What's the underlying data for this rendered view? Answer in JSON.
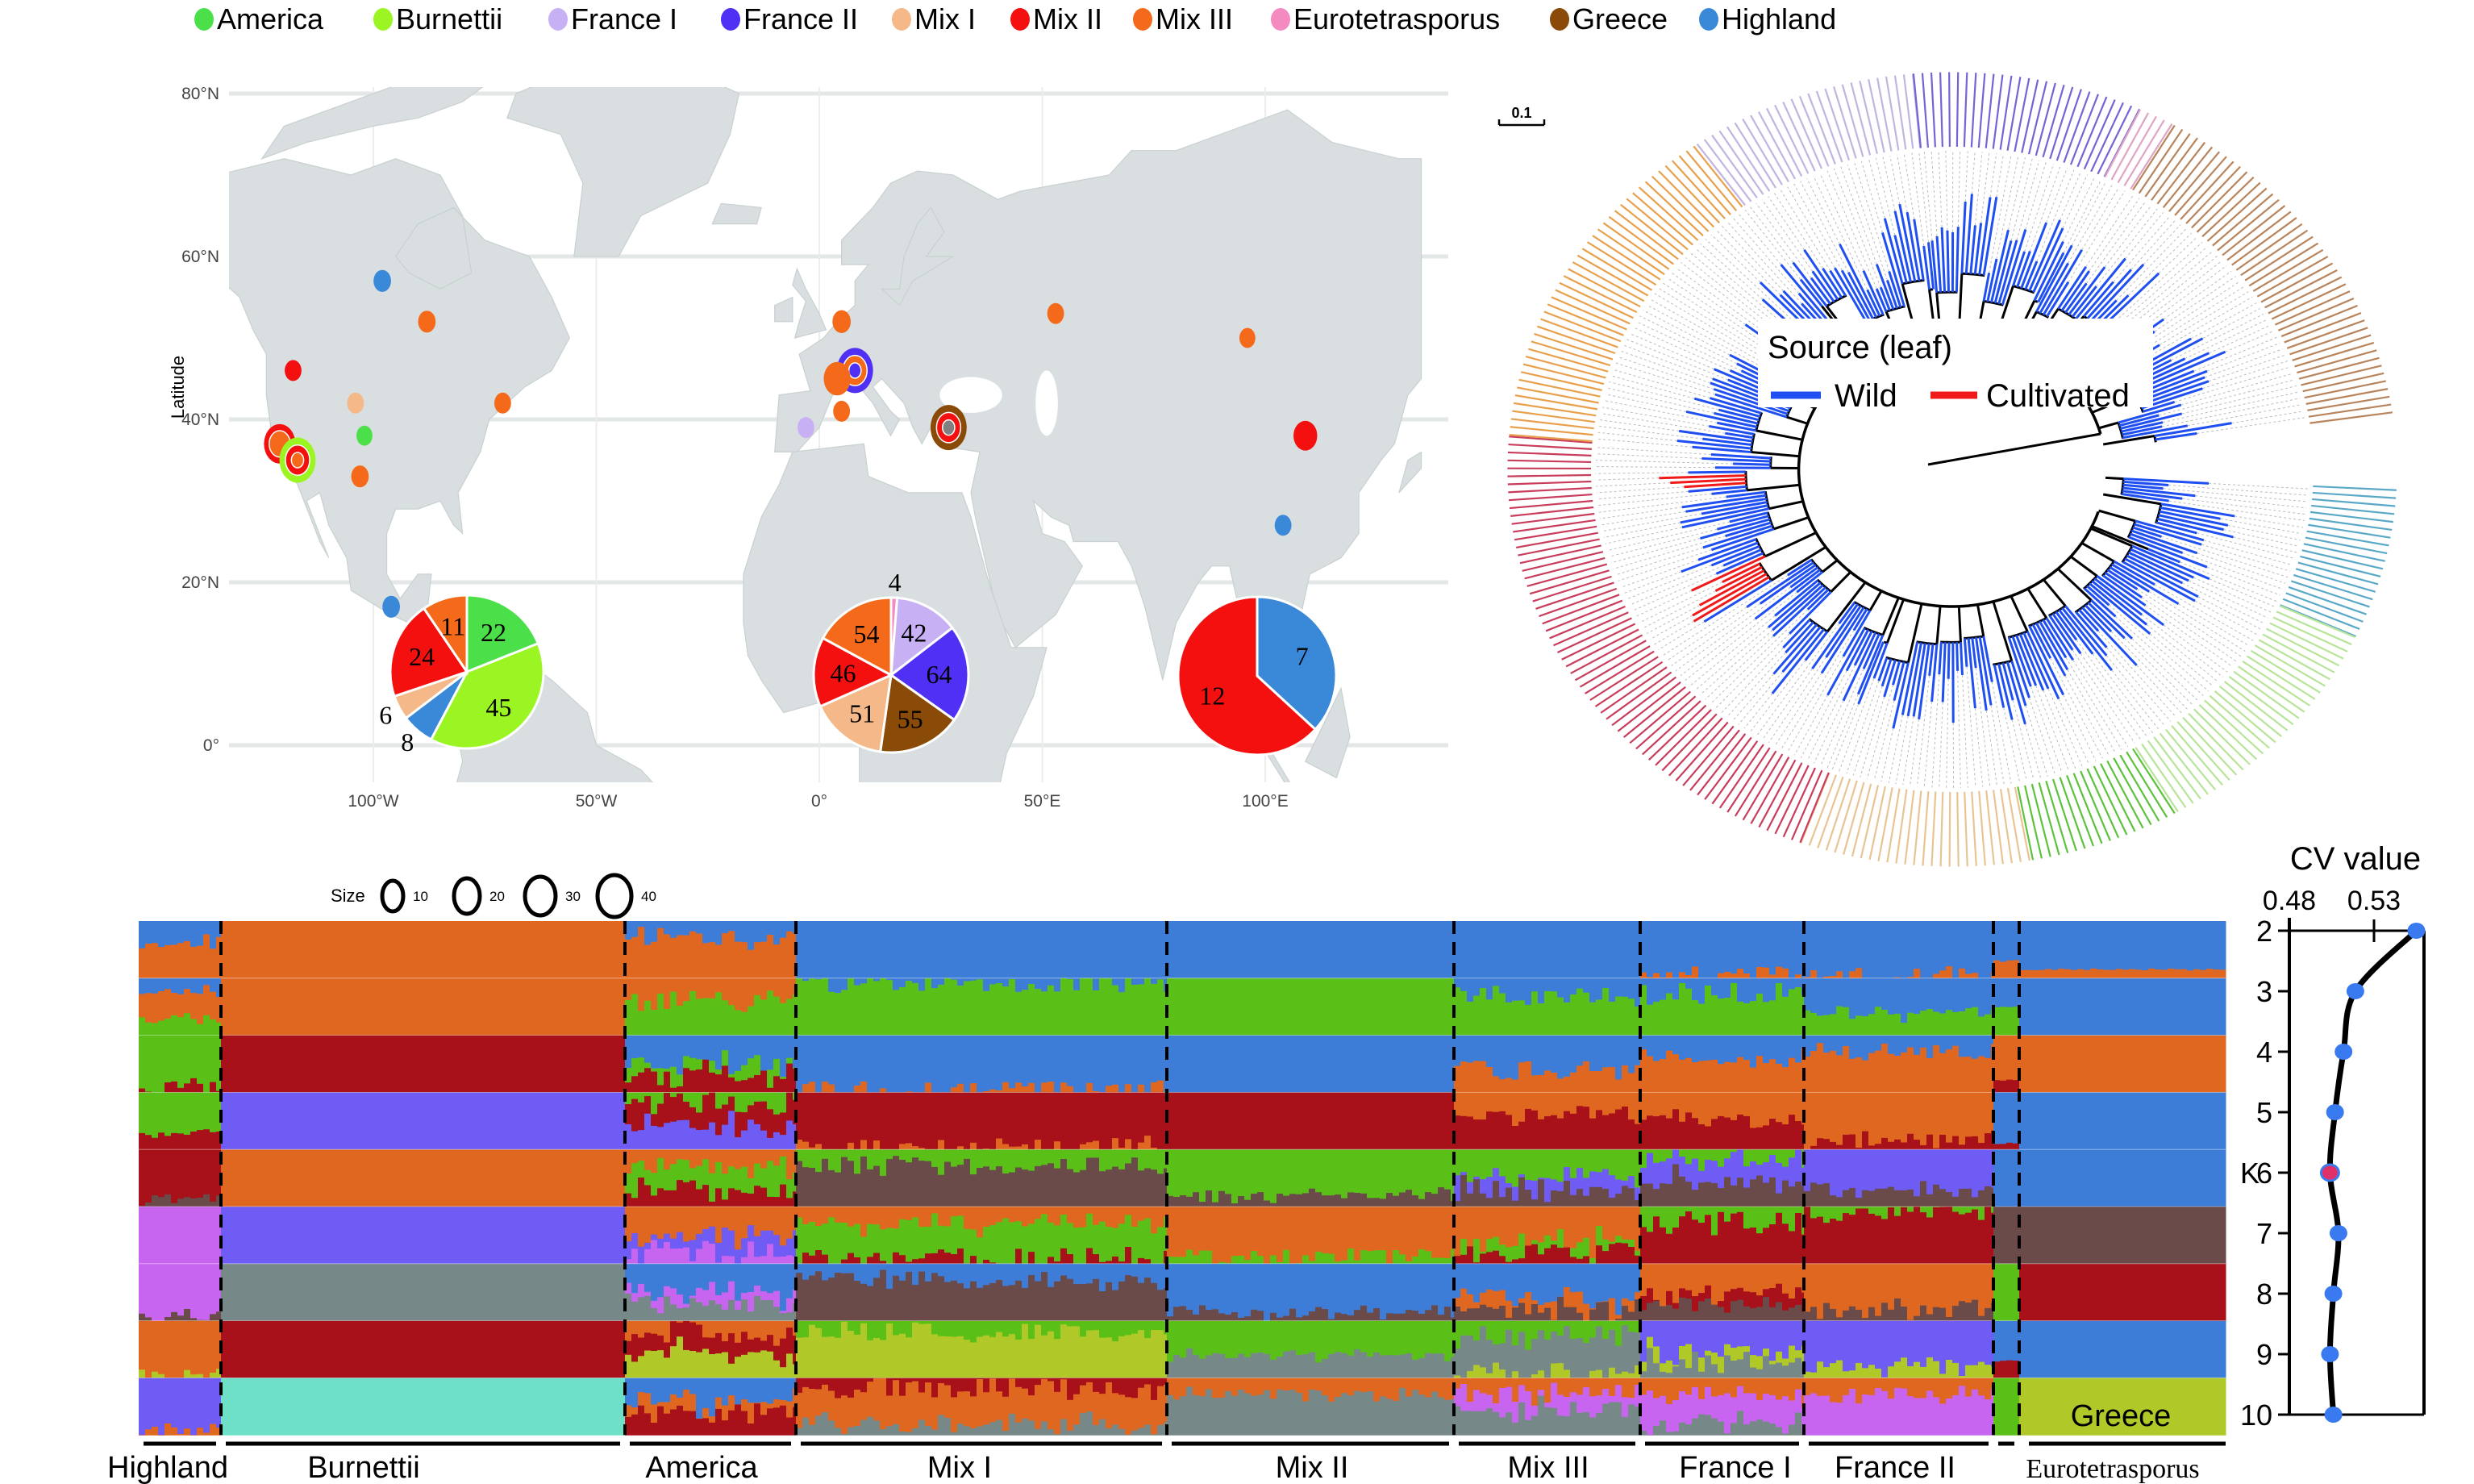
{
  "legend": [
    {
      "label": "America",
      "color": "#4be04a"
    },
    {
      "label": "Burnettii",
      "color": "#9af522"
    },
    {
      "label": "France I",
      "color": "#c8b0f5"
    },
    {
      "label": "France II",
      "color": "#5030f5"
    },
    {
      "label": "Mix I",
      "color": "#f5b888"
    },
    {
      "label": "Mix II",
      "color": "#f51010"
    },
    {
      "label": "Mix III",
      "color": "#f56a1a"
    },
    {
      "label": "Eurotetrasporus",
      "color": "#f58ac0"
    },
    {
      "label": "Greece",
      "color": "#8a4a08"
    },
    {
      "label": "Highland",
      "color": "#3a88d8"
    }
  ],
  "map": {
    "ylabel": "Latitude",
    "lat_ticks": [
      {
        "label": "80°N",
        "value": 80
      },
      {
        "label": "60°N",
        "value": 60
      },
      {
        "label": "40°N",
        "value": 40
      },
      {
        "label": "20°N",
        "value": 20
      },
      {
        "label": "0°",
        "value": 0
      }
    ],
    "lon_ticks": [
      {
        "label": "100°W",
        "value": -100
      },
      {
        "label": "50°W",
        "value": -50
      },
      {
        "label": "0°",
        "value": 0
      },
      {
        "label": "50°E",
        "value": 50
      },
      {
        "label": "100°E",
        "value": 100
      }
    ],
    "size_legend": {
      "title": "Size",
      "values": [
        "10",
        "20",
        "30",
        "40"
      ]
    },
    "land_color": "#d9dfe0",
    "points": [
      {
        "lon": -98,
        "lat": 57,
        "groups": [
          "Highland"
        ],
        "size": 6
      },
      {
        "lon": -88,
        "lat": 52,
        "groups": [
          "Mix III"
        ],
        "size": 6
      },
      {
        "lon": -118,
        "lat": 46,
        "groups": [
          "Mix II"
        ],
        "size": 5
      },
      {
        "lon": -104,
        "lat": 42,
        "groups": [
          "Mix I"
        ],
        "size": 5
      },
      {
        "lon": -102,
        "lat": 38,
        "groups": [
          "America"
        ],
        "size": 4
      },
      {
        "lon": -121,
        "lat": 37,
        "groups": [
          "Mix II",
          "Mix III"
        ],
        "size": 24
      },
      {
        "lon": -117,
        "lat": 35,
        "groups": [
          "Burnettii",
          "Mix II",
          "Mix III"
        ],
        "size": 30
      },
      {
        "lon": -103,
        "lat": 33,
        "groups": [
          "Mix III"
        ],
        "size": 6
      },
      {
        "lon": -71,
        "lat": 42,
        "groups": [
          "Mix III"
        ],
        "size": 5
      },
      {
        "lon": -96,
        "lat": 17,
        "groups": [
          "Highland"
        ],
        "size": 6
      },
      {
        "lon": 5,
        "lat": 52,
        "groups": [
          "Mix III"
        ],
        "size": 7
      },
      {
        "lon": 8,
        "lat": 46,
        "groups": [
          "France II",
          "Mix III",
          "France II"
        ],
        "size": 30
      },
      {
        "lon": 4,
        "lat": 45,
        "groups": [
          "Mix III"
        ],
        "size": 18
      },
      {
        "lon": 5,
        "lat": 41,
        "groups": [
          "Mix III"
        ],
        "size": 5
      },
      {
        "lon": -3,
        "lat": 39,
        "groups": [
          "France I"
        ],
        "size": 5
      },
      {
        "lon": 29,
        "lat": 39,
        "groups": [
          "Greece",
          "Mix II",
          "#808080"
        ],
        "size": 30
      },
      {
        "lon": 53,
        "lat": 53,
        "groups": [
          "Mix III"
        ],
        "size": 5
      },
      {
        "lon": 96,
        "lat": 50,
        "groups": [
          "Mix III"
        ],
        "size": 4
      },
      {
        "lon": 109,
        "lat": 38,
        "groups": [
          "Mix II"
        ],
        "size": 14
      },
      {
        "lon": 104,
        "lat": 27,
        "groups": [
          "Highland"
        ],
        "size": 5
      }
    ]
  },
  "tree": {
    "scale_label": "0.1",
    "legend_title": "Source (leaf)",
    "legend": [
      {
        "label": "Wild",
        "color": "#1f4ff0"
      },
      {
        "label": "Cultivated",
        "color": "#f01a1a"
      }
    ],
    "clades": [
      {
        "group": "Highland",
        "color": "#5aa8c8"
      },
      {
        "group": "Burnettii",
        "color": "#b8e49a"
      },
      {
        "group": "America",
        "color": "#5cc23c"
      },
      {
        "group": "Mix I",
        "color": "#e8c495"
      },
      {
        "group": "Mix II",
        "color": "#c83c5c"
      },
      {
        "group": "Mix III",
        "color": "#e8a04c"
      },
      {
        "group": "France I",
        "color": "#c2b4e0"
      },
      {
        "group": "France II",
        "color": "#7464d4"
      },
      {
        "group": "Eurotetrasporus",
        "color": "#e0a4c4"
      },
      {
        "group": "Greece",
        "color": "#b8845c"
      }
    ]
  },
  "structure": {
    "k_label": "K",
    "cluster_colors": {
      "B": "#3d7dd8",
      "O": "#e0671f",
      "G": "#5ac018",
      "R": "#a8101a",
      "P": "#6e5cf5",
      "M": "#6b4a4a",
      "V": "#c865f0",
      "Y": "#b0c828",
      "T": "#6ee0c8",
      "S": "#778888"
    },
    "groups": [
      {
        "label": "Highland",
        "inline": false,
        "comp": [
          "B.35 O.65",
          "B.25 O.45 G.3",
          "G.9 R.1",
          "G.75 R.25",
          "R.85 M.15",
          "V1",
          "V.9 M.1",
          "O.95 Y.05",
          "P.9 O.1"
        ]
      },
      {
        "label": "Burnettii",
        "inline": false,
        "comp": [
          "O1",
          "O1",
          "R1",
          "P1",
          "O1",
          "P1",
          "S1",
          "R1",
          "T1"
        ]
      },
      {
        "label": "America",
        "inline": false,
        "comp": [
          "B.3 O.7",
          "O.4 G.6",
          "B.5 G.2 R.3",
          "G.2 R.4 P.4",
          "O.3 G.4 R.3",
          "O.5 P.3 V.2",
          "B.5 V.2 S.3",
          "O.2 R.4 Y.4",
          "B.4 O.2 R.4"
        ]
      },
      {
        "label": "Mix I",
        "inline": false,
        "comp": [
          "B1",
          "B.1 G.9",
          "B.95 O.05",
          "R.95 O.05",
          "G.3 M.7",
          "O.3 G.6 R.1",
          "B.3 M.7",
          "G.2 Y.8",
          "R.2 O.6 S.2"
        ]
      },
      {
        "label": "Mix II",
        "inline": false,
        "comp": [
          "B1",
          "G1",
          "B1",
          "R1",
          "G.8 M.2",
          "O.85 G.15",
          "B.85 M.15",
          "G.6 S.4",
          "O.3 S.7"
        ]
      },
      {
        "label": "Mix III",
        "inline": false,
        "comp": [
          "B1",
          "B.3 G.7",
          "B.6 O.4",
          "O.4 R.6",
          "G.5 P.2 M.3",
          "O.6 G.2 R.2",
          "B.6 O.2 M.2",
          "G.3 S.6 Y.1",
          "O.3 V.3 S.4"
        ]
      },
      {
        "label": "France I",
        "inline": false,
        "comp": [
          "B.97 O.03",
          "B.3 G.7",
          "B.4 O.6",
          "O.5 R.5",
          "G.2 P.4 M.4",
          "G.3 R.7",
          "O.5 R.2 M.3",
          "P.5 Y.2 S.3",
          "O.3 V.5 S.2"
        ]
      },
      {
        "label": "France II",
        "inline": false,
        "comp": [
          "B.95 O.05",
          "B.6 G.4",
          "B.3 O.7",
          "O.8 R.2",
          "P.7 M.3",
          "G.1 R.9",
          "O.8 M.2",
          "P.8 Y.2",
          "O.3 V.7"
        ]
      },
      {
        "label": "Eurotetrasporus",
        "inline": false,
        "comp": [
          "B.7 O.3",
          "B.5 G.5",
          "O.8 R.2",
          "B.9 R.1",
          "B1",
          "M1",
          "G1",
          "B.7 R.3",
          "G1"
        ]
      },
      {
        "label": "Greece",
        "inline": true,
        "comp": [
          "B.85 O.15",
          "B1",
          "O1",
          "B1",
          "B1",
          "M1",
          "R1",
          "B1",
          "Y1"
        ]
      }
    ]
  },
  "chart_data": [
    {
      "type": "pie",
      "slices": [
        {
          "group": "America",
          "value": 22
        },
        {
          "group": "Burnettii",
          "value": 45
        },
        {
          "group": "Highland",
          "value": 8
        },
        {
          "group": "Mix I",
          "value": 6
        },
        {
          "group": "Mix II",
          "value": 24
        },
        {
          "group": "Mix III",
          "value": 11
        }
      ]
    },
    {
      "type": "pie",
      "slices": [
        {
          "group": "Eurotetrasporus",
          "value": 4
        },
        {
          "group": "France I",
          "value": 42
        },
        {
          "group": "France II",
          "value": 64
        },
        {
          "group": "Greece",
          "value": 55
        },
        {
          "group": "Mix I",
          "value": 51
        },
        {
          "group": "Mix II",
          "value": 46
        },
        {
          "group": "Mix III",
          "value": 54
        }
      ]
    },
    {
      "type": "pie",
      "slices": [
        {
          "group": "Highland",
          "value": 7
        },
        {
          "group": "Mix II",
          "value": 12
        }
      ]
    },
    {
      "type": "line",
      "title": "CV value",
      "ylabel": "K",
      "x_ticks": [
        "0.48",
        "0.53"
      ],
      "xlim": [
        0.48,
        0.555
      ],
      "k": [
        "2",
        "3",
        "4",
        "5",
        "6",
        "7",
        "8",
        "9",
        "10"
      ],
      "values": [
        0.555,
        0.519,
        0.512,
        0.507,
        0.504,
        0.509,
        0.506,
        0.504,
        0.506
      ],
      "best_k": 6,
      "point_color": "#3a7af0",
      "best_color": "#e0306a"
    }
  ]
}
